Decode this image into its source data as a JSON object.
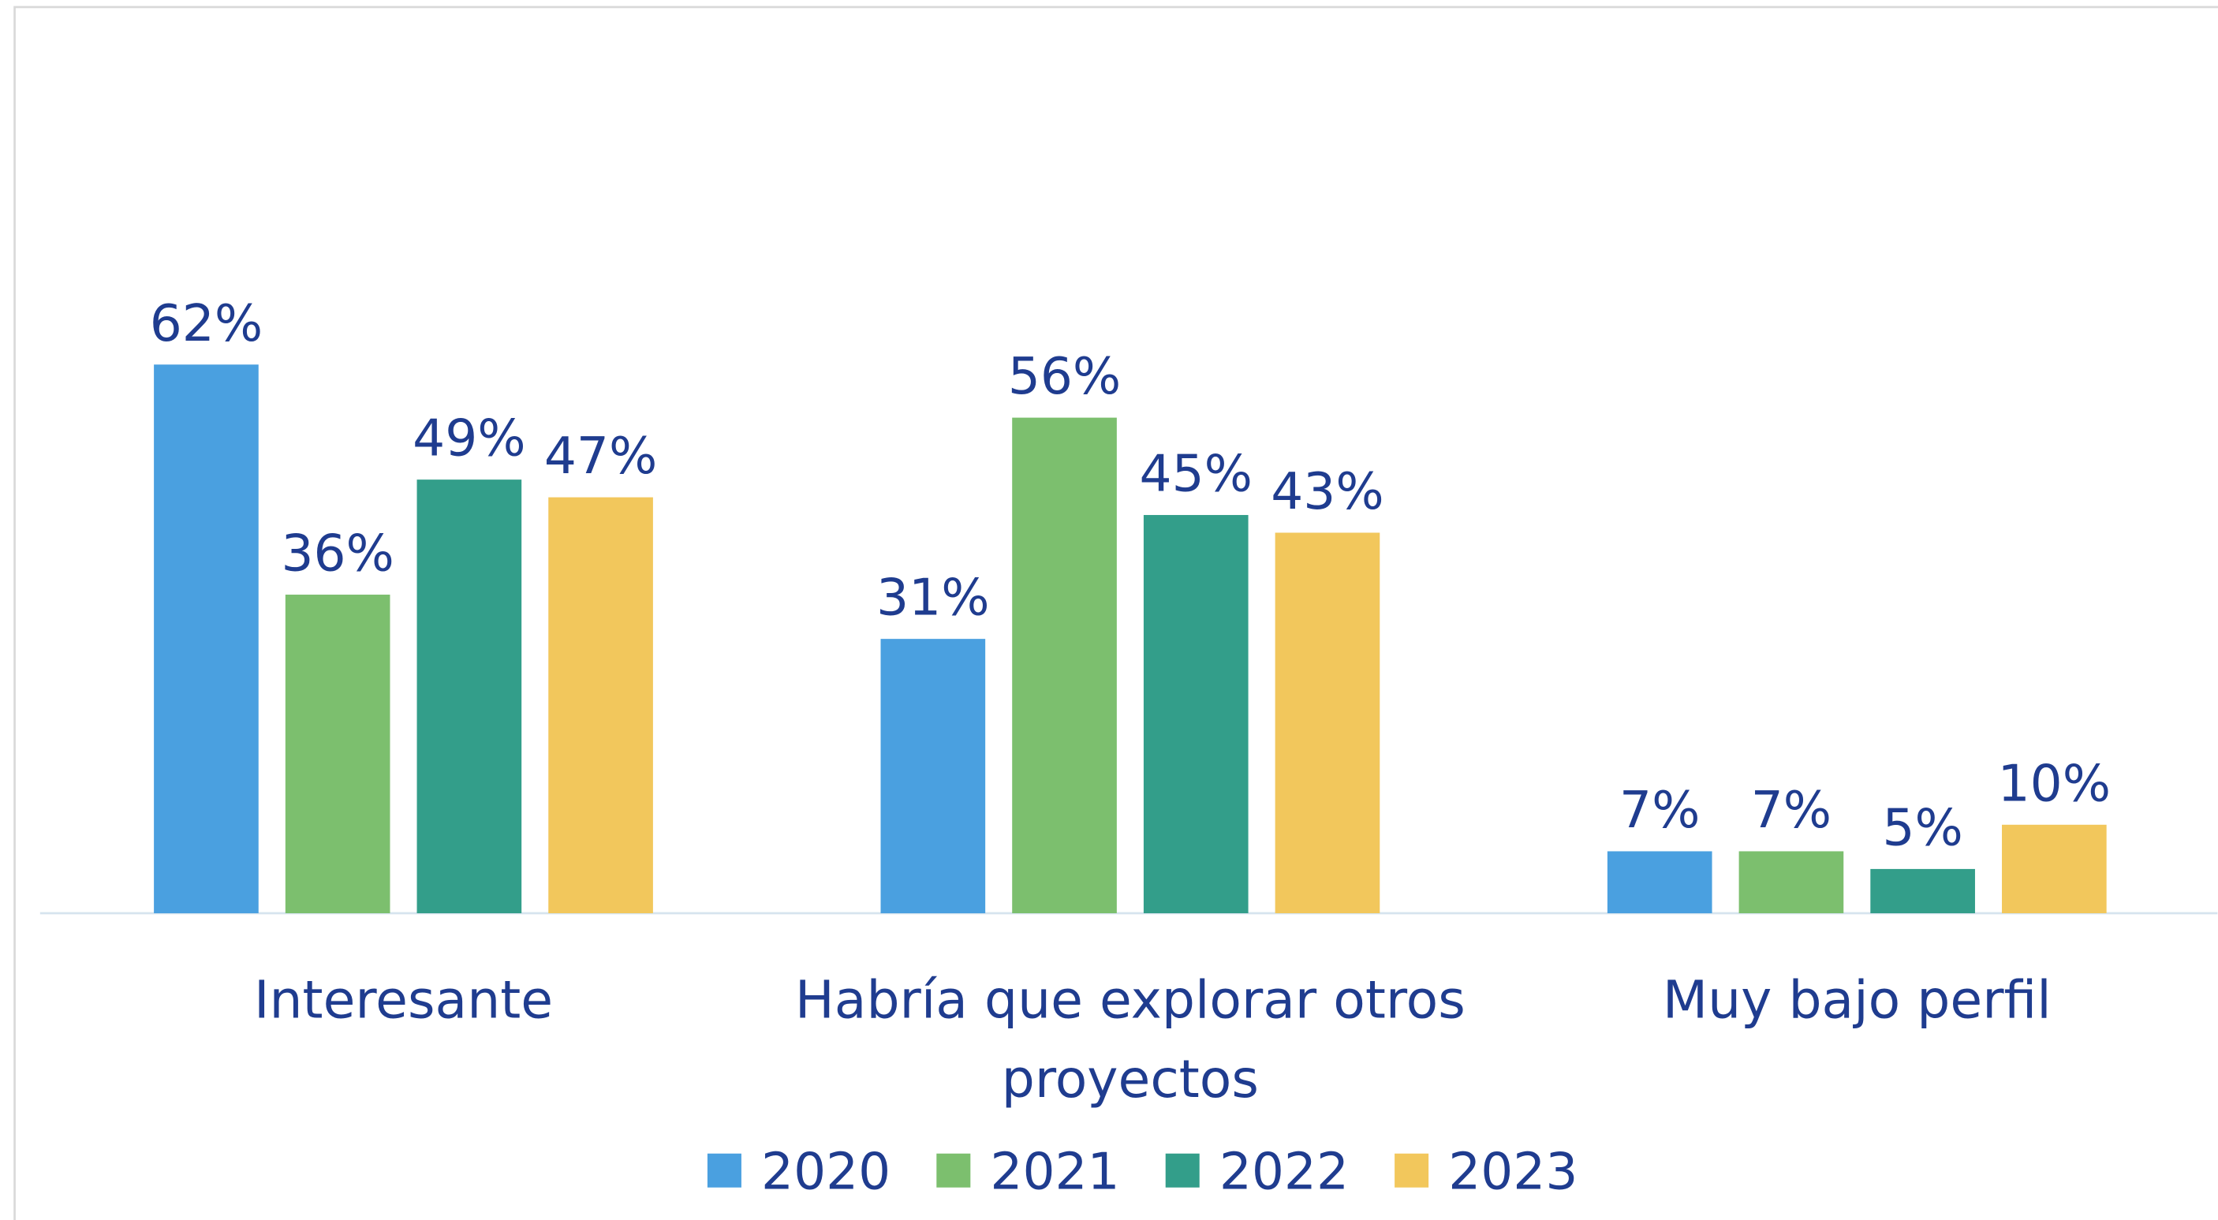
{
  "chart_data": {
    "type": "bar",
    "categories": [
      "Interesante",
      "Habría que explorar otros proyectos",
      "Muy bajo perfil"
    ],
    "series": [
      {
        "name": "2020",
        "color": "#4aa0e0",
        "values": [
          62,
          31,
          7
        ],
        "value_labels": [
          "62%",
          "31%",
          "7%"
        ]
      },
      {
        "name": "2021",
        "color": "#7cbf6e",
        "values": [
          36,
          56,
          7
        ],
        "value_labels": [
          "36%",
          "56%",
          "7%"
        ]
      },
      {
        "name": "2022",
        "color": "#339e8a",
        "values": [
          49,
          45,
          5
        ],
        "value_labels": [
          "49%",
          "45%",
          "5%"
        ]
      },
      {
        "name": "2023",
        "color": "#f2c75c",
        "values": [
          47,
          43,
          10
        ],
        "value_labels": [
          "47%",
          "43%",
          "10%"
        ]
      }
    ],
    "legend": "bottom"
  }
}
